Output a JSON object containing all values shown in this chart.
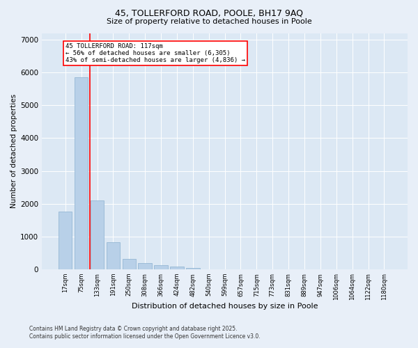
{
  "title1": "45, TOLLERFORD ROAD, POOLE, BH17 9AQ",
  "title2": "Size of property relative to detached houses in Poole",
  "xlabel": "Distribution of detached houses by size in Poole",
  "ylabel": "Number of detached properties",
  "categories": [
    "17sqm",
    "75sqm",
    "133sqm",
    "191sqm",
    "250sqm",
    "308sqm",
    "366sqm",
    "424sqm",
    "482sqm",
    "540sqm",
    "599sqm",
    "657sqm",
    "715sqm",
    "773sqm",
    "831sqm",
    "889sqm",
    "947sqm",
    "1006sqm",
    "1064sqm",
    "1122sqm",
    "1180sqm"
  ],
  "values": [
    1750,
    5850,
    2100,
    820,
    320,
    200,
    120,
    80,
    45,
    10,
    3,
    0,
    0,
    0,
    0,
    0,
    0,
    0,
    0,
    0,
    0
  ],
  "bar_color": "#b8d0e8",
  "bar_edge_color": "#8ab0d0",
  "vline_color": "red",
  "vline_pos": 1.55,
  "annotation_line1": "45 TOLLERFORD ROAD: 117sqm",
  "annotation_line2": "← 56% of detached houses are smaller (6,305)",
  "annotation_line3": "43% of semi-detached houses are larger (4,836) →",
  "annotation_box_color": "red",
  "ylim": [
    0,
    7200
  ],
  "yticks": [
    0,
    1000,
    2000,
    3000,
    4000,
    5000,
    6000,
    7000
  ],
  "footer1": "Contains HM Land Registry data © Crown copyright and database right 2025.",
  "footer2": "Contains public sector information licensed under the Open Government Licence v3.0.",
  "bg_color": "#e8eff8",
  "plot_bg_color": "#dce8f4"
}
